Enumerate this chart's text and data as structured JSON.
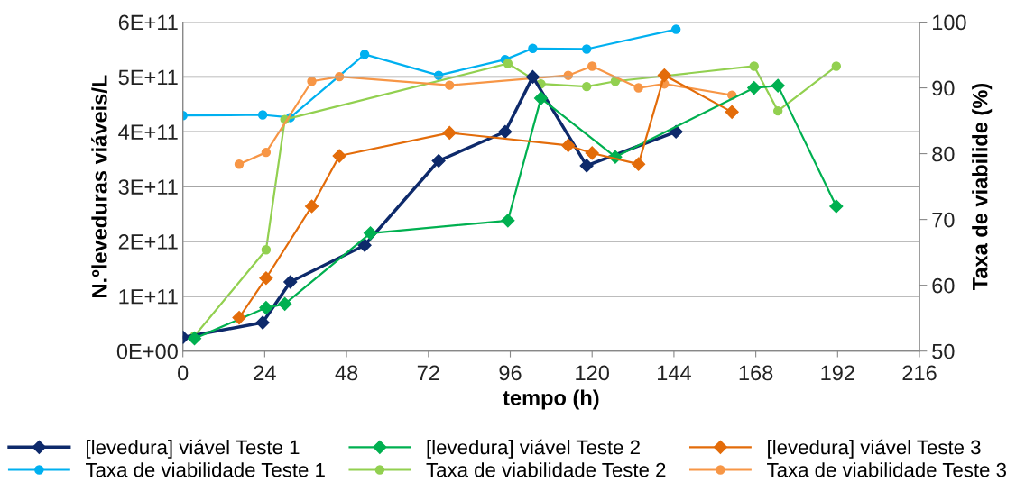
{
  "chart_data": {
    "type": "line",
    "xlabel": "tempo (h)",
    "ylabel": "N.ºleveduras viáveis/L",
    "y2label": "Taxa de viabilide (%)",
    "xlim": [
      0,
      216
    ],
    "xticks": [
      0,
      24,
      48,
      72,
      96,
      120,
      144,
      168,
      192,
      216
    ],
    "ylim": [
      0,
      600000000000.0
    ],
    "yticks": [
      {
        "value": 0,
        "label": "0E+00"
      },
      {
        "value": 100000000000.0,
        "label": "1E+11"
      },
      {
        "value": 200000000000.0,
        "label": "2E+11"
      },
      {
        "value": 300000000000.0,
        "label": "3E+11"
      },
      {
        "value": 400000000000.0,
        "label": "4E+11"
      },
      {
        "value": 500000000000.0,
        "label": "5E+11"
      },
      {
        "value": 600000000000.0,
        "label": "6E+11"
      }
    ],
    "y2lim": [
      50,
      100
    ],
    "y2ticks": [
      50,
      60,
      70,
      80,
      90,
      100
    ],
    "grid": "y",
    "legend": "bottom",
    "line_style": "solid",
    "series": [
      {
        "name": "[levedura] viável Teste 1",
        "color": "#0e2a6b",
        "marker": "diamond",
        "x": [
          0,
          23.4,
          31.5,
          53.3,
          75,
          94.5,
          102.6,
          118.4,
          144.6
        ],
        "values": [
          25000000000.0,
          52000000000.0,
          126000000000.0,
          193000000000.0,
          347000000000.0,
          400000000000.0,
          500000000000.0,
          338000000000.0,
          400000000000.0
        ]
      },
      {
        "name": "[levedura] viável Teste 2",
        "color": "#00b050",
        "marker": "diamond",
        "x": [
          3.4,
          24.4,
          29.9,
          55,
          95.3,
          105,
          126.8,
          167.5,
          174.5,
          191.6
        ],
        "values": [
          23000000000.0,
          79000000000.0,
          86000000000.0,
          215000000000.0,
          238000000000.0,
          461000000000.0,
          354000000000.0,
          480000000000.0,
          484000000000.0,
          264000000000.0
        ]
      },
      {
        "name": "[levedura] viável Teste 3",
        "color": "#e36c0a",
        "marker": "diamond",
        "x": [
          16.5,
          24.4,
          37.8,
          45.9,
          78.2,
          113,
          120,
          133.6,
          141.2,
          161
        ],
        "values": [
          61000000000.0,
          133000000000.0,
          264000000000.0,
          356000000000.0,
          398000000000.0,
          375000000000.0,
          361000000000.0,
          341000000000.0,
          503000000000.0,
          436000000000.0
        ]
      },
      {
        "name": "Taxa de viabilidade Teste 1",
        "color": "#00b0f0",
        "marker": "circle",
        "axis": "y2",
        "x": [
          0,
          23.4,
          31.5,
          53.3,
          75,
          94.5,
          102.6,
          118.4,
          144.6
        ],
        "values": [
          85.8,
          85.9,
          85.5,
          95.1,
          91.9,
          94.3,
          96.0,
          95.9,
          98.9
        ]
      },
      {
        "name": "Taxa de viabilidade Teste 2",
        "color": "#92d050",
        "marker": "circle",
        "axis": "y2",
        "x": [
          3.4,
          24.4,
          29.9,
          95.3,
          105,
          118.4,
          126.8,
          167.5,
          174.5,
          191.6
        ],
        "values": [
          52.3,
          65.4,
          85.2,
          93.7,
          90.6,
          90.2,
          91.0,
          93.3,
          86.5,
          93.3
        ]
      },
      {
        "name": "Taxa de viabilidade Teste 3",
        "color": "#f79646",
        "marker": "circle",
        "axis": "y2",
        "x": [
          16.5,
          24.4,
          37.8,
          45.9,
          78.2,
          113,
          120,
          133.6,
          141.2,
          161
        ],
        "values": [
          78.4,
          80.2,
          91.0,
          91.7,
          90.4,
          91.9,
          93.3,
          90.0,
          90.6,
          88.9
        ]
      }
    ]
  }
}
